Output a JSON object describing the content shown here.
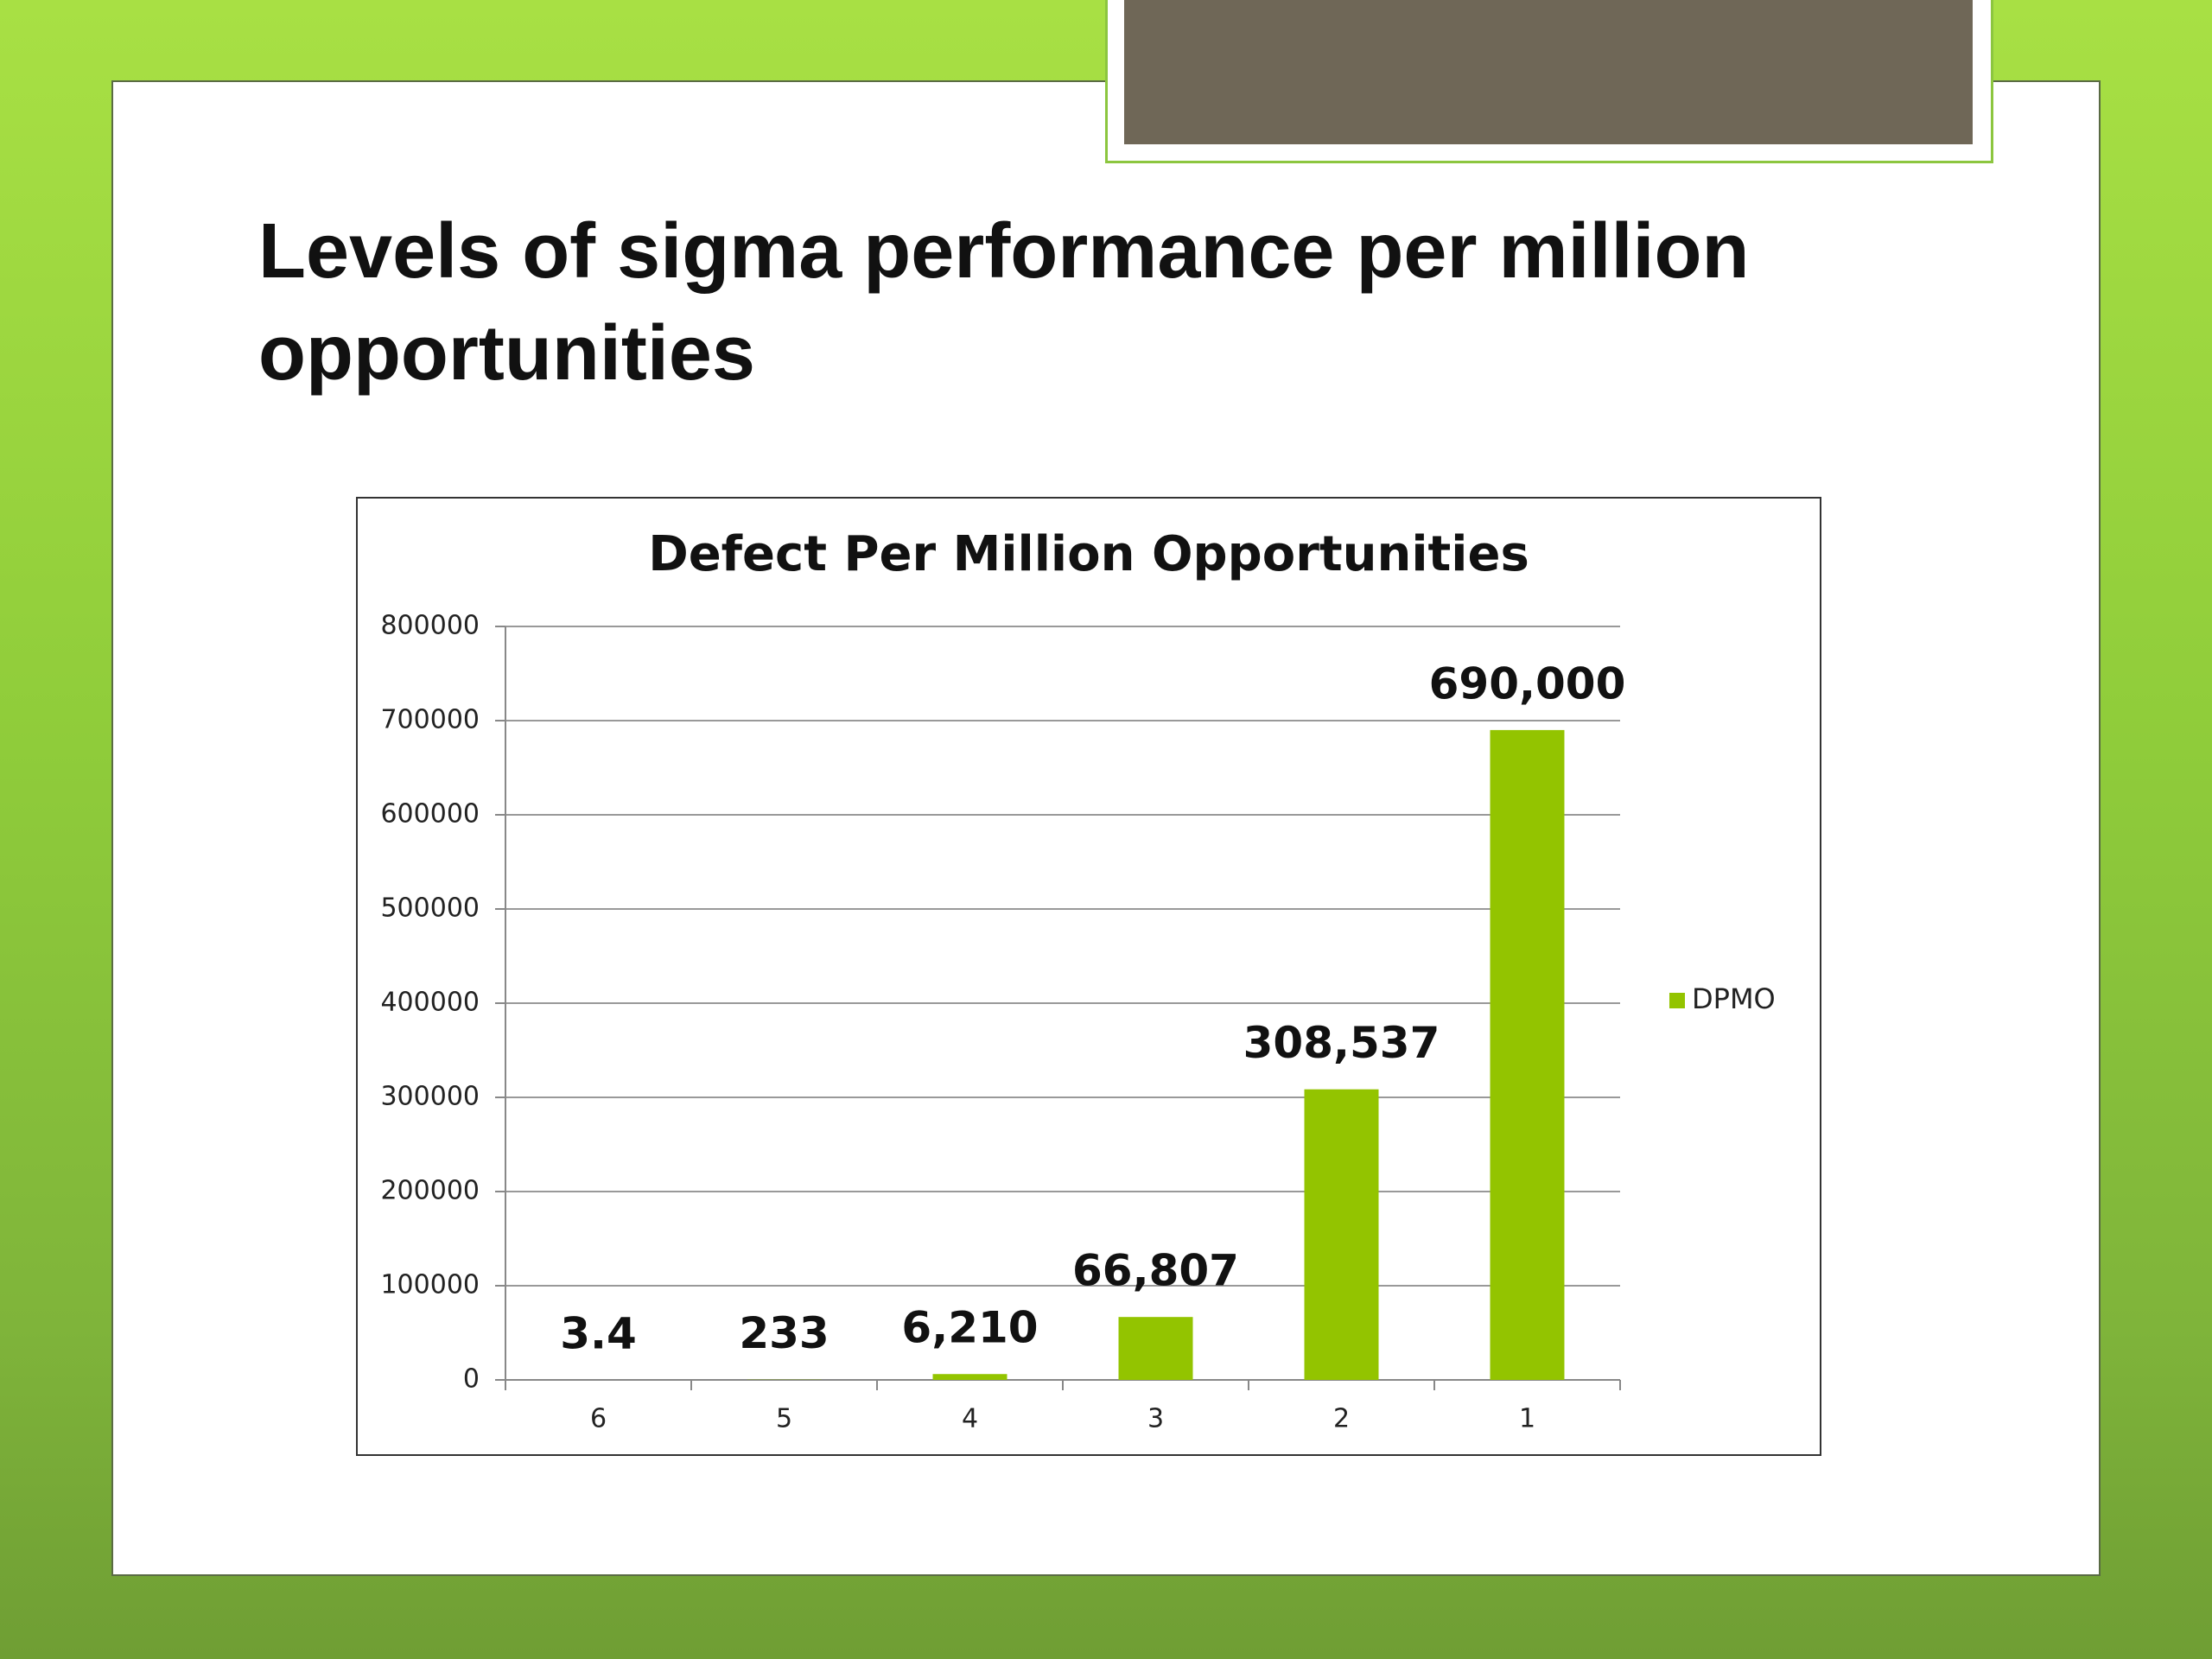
{
  "slide_title": "Levels of sigma performance per million opportunities",
  "chart_data": {
    "type": "bar",
    "title": "Defect Per Million Opportunities",
    "categories": [
      "6",
      "5",
      "4",
      "3",
      "2",
      "1"
    ],
    "series": [
      {
        "name": "DPMO",
        "color": "#93c400",
        "values": [
          3.4,
          233,
          6210,
          66807,
          308537,
          690000
        ],
        "value_labels": [
          "3.4",
          "233",
          "6,210",
          "66,807",
          "308,537",
          "690,000"
        ]
      }
    ],
    "ylim": [
      0,
      800000
    ],
    "yticks": [
      0,
      100000,
      200000,
      300000,
      400000,
      500000,
      600000,
      700000,
      800000
    ],
    "grid": true,
    "legend": "right"
  }
}
